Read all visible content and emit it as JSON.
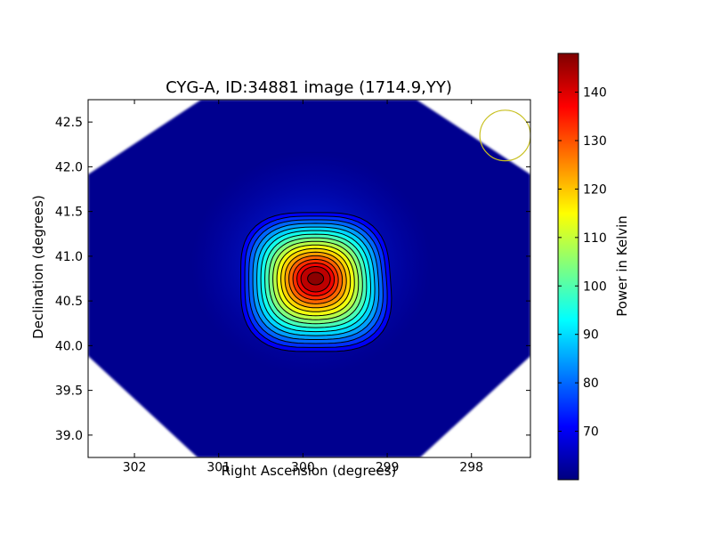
{
  "chart_data": {
    "type": "heatmap",
    "title": "CYG-A, ID:34881 image (1714.9,YY)",
    "xlabel": "Right Ascension (degrees)",
    "ylabel": "Declination (degrees)",
    "xlim": [
      302.55,
      297.3
    ],
    "ylim": [
      38.75,
      42.75
    ],
    "xticks": [
      302,
      301,
      300,
      299,
      298
    ],
    "yticks": [
      39.0,
      39.5,
      40.0,
      40.5,
      41.0,
      41.5,
      42.0,
      42.5
    ],
    "xtick_labels": [
      "302",
      "301",
      "300",
      "299",
      "298"
    ],
    "ytick_labels": [
      "39.0",
      "39.5",
      "40.0",
      "40.5",
      "41.0",
      "41.5",
      "42.0",
      "42.5"
    ],
    "source_peak": {
      "ra": 299.85,
      "dec": 40.75
    },
    "beam_circle": {
      "ra": 297.6,
      "dec": 42.35,
      "radius_deg": 0.3
    },
    "contour_count": 16,
    "colorbar": {
      "label": "Power in Kelvin",
      "min": 60,
      "max": 148,
      "ticks": [
        70,
        80,
        90,
        100,
        110,
        120,
        130,
        140
      ],
      "tick_labels": [
        "70",
        "80",
        "90",
        "100",
        "110",
        "120",
        "130",
        "140"
      ],
      "colormap": "jet"
    }
  }
}
